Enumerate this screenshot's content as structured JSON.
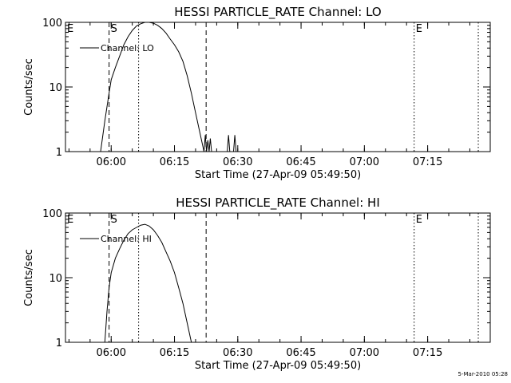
{
  "footer": {
    "stamp": "5-Mar-2010 05:28"
  },
  "colors": {
    "background": "#ffffff",
    "foreground": "#000000"
  },
  "chart_data": [
    {
      "type": "line",
      "title": "HESSI PARTICLE_RATE Channel: LO",
      "xlabel": "Start Time (27-Apr-09 05:49:50)",
      "ylabel": "Counts/sec",
      "yscale": "log",
      "ylim": [
        1,
        100
      ],
      "xlim_minutes": [
        -10.833,
        89.833
      ],
      "xticks": [
        {
          "label": "06:00",
          "min": 0
        },
        {
          "label": "06:15",
          "min": 15
        },
        {
          "label": "06:30",
          "min": 30
        },
        {
          "label": "06:45",
          "min": 45
        },
        {
          "label": "07:00",
          "min": 60
        },
        {
          "label": "07:15",
          "min": 75
        }
      ],
      "yticks": [
        {
          "label": "1",
          "v": 1
        },
        {
          "label": "10",
          "v": 10
        },
        {
          "label": "100",
          "v": 100
        }
      ],
      "legend": {
        "label": "Channel: LO",
        "position": "top-left"
      },
      "markers": [
        {
          "label": "E",
          "min": -10.833,
          "style": "dotted"
        },
        {
          "label": "S",
          "min": -0.5,
          "style": "dashed"
        },
        {
          "label": "",
          "min": 6.5,
          "style": "dotted"
        },
        {
          "label": "",
          "min": 22.5,
          "style": "dashed"
        },
        {
          "label": "E",
          "min": 71.8,
          "style": "dotted"
        },
        {
          "label": "",
          "min": 87.0,
          "style": "dotted"
        }
      ],
      "series": [
        {
          "name": "Channel: LO",
          "points": [
            [
              -2.5,
              1
            ],
            [
              -1.5,
              3
            ],
            [
              -0.5,
              8
            ],
            [
              0,
              13
            ],
            [
              1,
              20
            ],
            [
              2,
              30
            ],
            [
              3,
              45
            ],
            [
              4,
              60
            ],
            [
              5,
              75
            ],
            [
              6,
              88
            ],
            [
              7,
              95
            ],
            [
              8,
              100
            ],
            [
              9,
              100
            ],
            [
              10,
              97
            ],
            [
              11,
              90
            ],
            [
              12,
              80
            ],
            [
              13,
              68
            ],
            [
              14,
              55
            ],
            [
              15,
              45
            ],
            [
              16,
              35
            ],
            [
              17,
              25
            ],
            [
              18,
              15
            ],
            [
              19,
              8
            ],
            [
              20,
              4
            ],
            [
              21,
              2
            ],
            [
              22,
              1
            ],
            [
              22.3,
              1.8
            ],
            [
              22.6,
              1
            ],
            [
              22.9,
              1.5
            ],
            [
              23.2,
              1
            ],
            [
              23.5,
              1.6
            ],
            [
              23.8,
              1
            ],
            [
              27.5,
              1
            ],
            [
              27.8,
              1.8
            ],
            [
              28.1,
              1
            ],
            [
              29.0,
              1
            ],
            [
              29.3,
              1.8
            ],
            [
              29.6,
              1
            ]
          ]
        }
      ]
    },
    {
      "type": "line",
      "title": "HESSI PARTICLE_RATE Channel: HI",
      "xlabel": "Start Time (27-Apr-09 05:49:50)",
      "ylabel": "Counts/sec",
      "yscale": "log",
      "ylim": [
        1,
        100
      ],
      "xlim_minutes": [
        -10.833,
        89.833
      ],
      "xticks": [
        {
          "label": "06:00",
          "min": 0
        },
        {
          "label": "06:15",
          "min": 15
        },
        {
          "label": "06:30",
          "min": 30
        },
        {
          "label": "06:45",
          "min": 45
        },
        {
          "label": "07:00",
          "min": 60
        },
        {
          "label": "07:15",
          "min": 75
        }
      ],
      "yticks": [
        {
          "label": "1",
          "v": 1
        },
        {
          "label": "10",
          "v": 10
        },
        {
          "label": "100",
          "v": 100
        }
      ],
      "legend": {
        "label": "Channel: HI",
        "position": "top-left"
      },
      "markers": [
        {
          "label": "E",
          "min": -10.833,
          "style": "dotted"
        },
        {
          "label": "S",
          "min": -0.5,
          "style": "dashed"
        },
        {
          "label": "",
          "min": 6.5,
          "style": "dotted"
        },
        {
          "label": "",
          "min": 22.5,
          "style": "dashed"
        },
        {
          "label": "E",
          "min": 71.8,
          "style": "dotted"
        },
        {
          "label": "",
          "min": 87.0,
          "style": "dotted"
        }
      ],
      "series": [
        {
          "name": "Channel: HI",
          "points": [
            [
              -1.5,
              1
            ],
            [
              -1,
              3
            ],
            [
              -0.5,
              7
            ],
            [
              0,
              12
            ],
            [
              1,
              20
            ],
            [
              2,
              28
            ],
            [
              3,
              38
            ],
            [
              4,
              48
            ],
            [
              5,
              55
            ],
            [
              6,
              60
            ],
            [
              7,
              65
            ],
            [
              8,
              67
            ],
            [
              9,
              63
            ],
            [
              10,
              55
            ],
            [
              11,
              45
            ],
            [
              12,
              35
            ],
            [
              13,
              25
            ],
            [
              14,
              18
            ],
            [
              15,
              12
            ],
            [
              16,
              7
            ],
            [
              17,
              4
            ],
            [
              18,
              2
            ],
            [
              19,
              1
            ]
          ]
        }
      ]
    }
  ]
}
